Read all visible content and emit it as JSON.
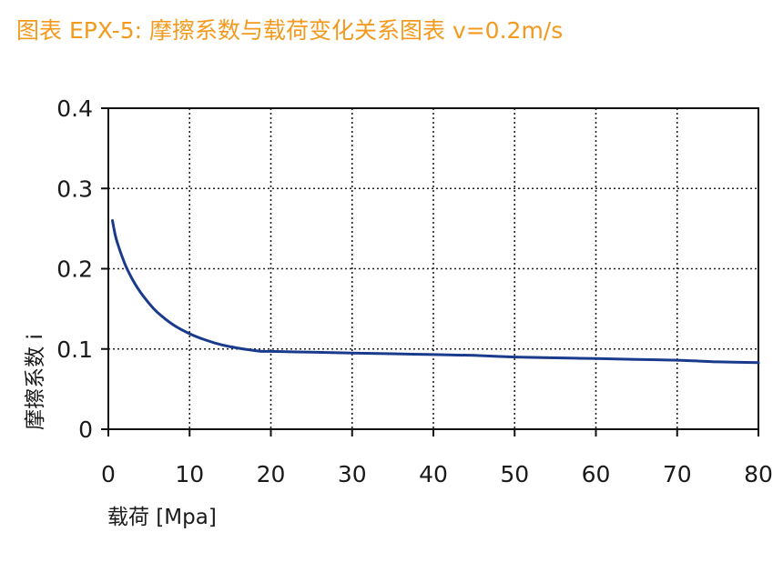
{
  "title": "图表 EPX-5: 摩擦系数与载荷变化关系图表 v=0.2m/s",
  "colors": {
    "title": "#f39a1e",
    "series": "#1a3a8c",
    "axis": "#111111",
    "grid": "#222222"
  },
  "chart_data": {
    "type": "line",
    "xlabel": "载荷 [Mpa]",
    "ylabel": "摩擦系数 i",
    "xlim": [
      0,
      80
    ],
    "ylim": [
      0,
      0.4
    ],
    "xticks": [
      "0",
      "10",
      "20",
      "30",
      "40",
      "50",
      "60",
      "70",
      "80"
    ],
    "yticks": [
      "0",
      "0.1",
      "0.2",
      "0.3",
      "0.4"
    ],
    "grid": true,
    "series": [
      {
        "x": [
          0.5,
          1,
          2,
          3,
          4,
          5,
          6,
          8,
          10,
          12,
          14,
          16,
          18,
          19,
          20,
          25,
          30,
          35,
          40,
          45,
          50,
          55,
          60,
          65,
          70,
          75,
          80
        ],
        "y": [
          0.26,
          0.236,
          0.207,
          0.186,
          0.17,
          0.157,
          0.146,
          0.13,
          0.119,
          0.111,
          0.105,
          0.101,
          0.098,
          0.097,
          0.097,
          0.096,
          0.095,
          0.094,
          0.093,
          0.092,
          0.09,
          0.089,
          0.088,
          0.087,
          0.086,
          0.084,
          0.083
        ]
      }
    ]
  }
}
